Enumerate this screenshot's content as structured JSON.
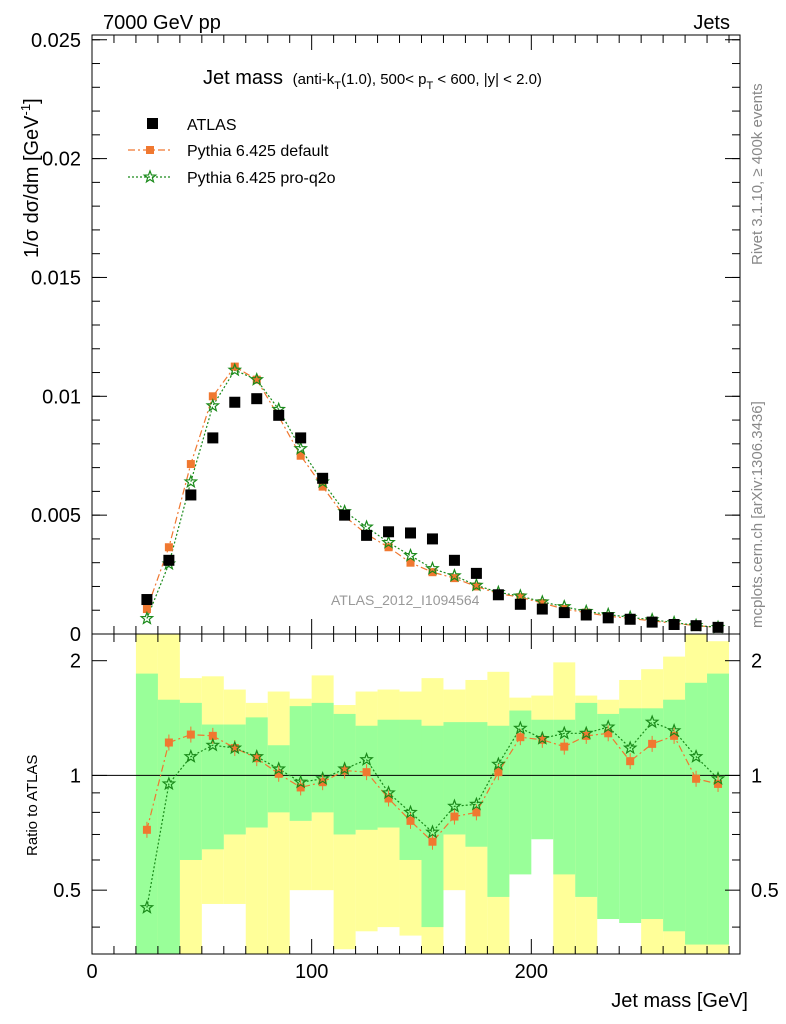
{
  "header": {
    "left": "7000 GeV pp",
    "right": "Jets"
  },
  "side_labels": {
    "top": "Rivet 3.1.10, ≥ 400k events",
    "bottom": "mcplots.cern.ch [arXiv:1306.3436]"
  },
  "watermark": "ATLAS_2012_I1094564",
  "colors": {
    "atlas": "#000000",
    "default": "#f07830",
    "proq2o": "#1a8a1a",
    "band_inner": "#99ff99",
    "band_outer": "#ffff99"
  },
  "chart_data": [
    {
      "type": "scatter",
      "title_main": "Jet mass",
      "title_sub": "(anti-k",
      "title_sub_T": "T",
      "title_sub_rest": "(1.0), 500< p",
      "title_sub_T2": "T",
      "title_sub_end": " < 600, |y| < 2.0)",
      "ylabel": "1/σ dσ/dm [GeV",
      "ylabel_sup": "-1",
      "ylabel_end": "]",
      "xlim": [
        0,
        295
      ],
      "ylim": [
        0,
        0.0252
      ],
      "yticks": [
        0,
        0.005,
        0.01,
        0.015,
        0.02,
        0.025
      ],
      "ytick_labels": [
        "0",
        "0.005",
        "0.01",
        "0.015",
        "0.02",
        "0.025"
      ],
      "legend_position": "top-left",
      "x": [
        25,
        35,
        45,
        55,
        65,
        75,
        85,
        95,
        105,
        115,
        125,
        135,
        145,
        155,
        165,
        175,
        185,
        195,
        205,
        215,
        225,
        235,
        245,
        255,
        265,
        275,
        285
      ],
      "series": [
        {
          "name": "ATLAS",
          "key": "atlas",
          "values": [
            0.00145,
            0.0031,
            0.00585,
            0.00825,
            0.00975,
            0.0099,
            0.0092,
            0.00825,
            0.00655,
            0.005,
            0.00415,
            0.0043,
            0.00425,
            0.004,
            0.0031,
            0.00255,
            0.00165,
            0.00125,
            0.00105,
            0.0009,
            0.0008,
            0.00068,
            0.00062,
            0.0005,
            0.0004,
            0.00035,
            0.00028
          ]
        },
        {
          "name": "Pythia 6.425 default",
          "key": "default",
          "values": [
            0.00105,
            0.00365,
            0.00715,
            0.01,
            0.01125,
            0.0107,
            0.00915,
            0.0075,
            0.0062,
            0.00495,
            0.0042,
            0.00365,
            0.003,
            0.0026,
            0.00235,
            0.002,
            0.0017,
            0.00155,
            0.0013,
            0.00105,
            0.0009,
            0.00075,
            0.00065,
            0.00055,
            0.00045,
            0.00035,
            0.00028
          ]
        },
        {
          "name": "Pythia 6.425 pro-q2o",
          "key": "proq2o",
          "values": [
            0.00065,
            0.00295,
            0.0064,
            0.0096,
            0.0111,
            0.0107,
            0.00945,
            0.0078,
            0.0064,
            0.00515,
            0.0045,
            0.00385,
            0.0033,
            0.00275,
            0.00245,
            0.00205,
            0.00175,
            0.0016,
            0.00135,
            0.00115,
            0.00095,
            0.00082,
            0.0007,
            0.0006,
            0.00048,
            0.00036,
            0.00028
          ]
        }
      ]
    },
    {
      "type": "scatter",
      "ylabel": "Ratio to ATLAS",
      "xlabel": "Jet mass [GeV]",
      "scale": "log",
      "xlim": [
        0,
        295
      ],
      "ylim": [
        0.34,
        2.35
      ],
      "xticks": [
        0,
        100,
        200
      ],
      "xtick_labels": [
        "0",
        "100",
        "200"
      ],
      "yticks": [
        0.5,
        1,
        2
      ],
      "ytick_labels": [
        "0.5",
        "1",
        "2"
      ],
      "bin_edges": [
        20,
        30,
        40,
        50,
        60,
        70,
        80,
        90,
        100,
        110,
        120,
        130,
        140,
        150,
        160,
        170,
        180,
        190,
        200,
        210,
        220,
        230,
        240,
        250,
        260,
        270,
        280,
        290
      ],
      "band_inner": [
        [
          0.34,
          1.85
        ],
        [
          0.34,
          1.58
        ],
        [
          0.6,
          1.55
        ],
        [
          0.64,
          1.36
        ],
        [
          0.7,
          1.36
        ],
        [
          0.73,
          1.42
        ],
        [
          0.8,
          1.2
        ],
        [
          0.76,
          1.52
        ],
        [
          0.8,
          1.55
        ],
        [
          0.7,
          1.45
        ],
        [
          0.72,
          1.35
        ],
        [
          0.73,
          1.4
        ],
        [
          0.6,
          1.4
        ],
        [
          0.4,
          1.35
        ],
        [
          0.7,
          1.38
        ],
        [
          0.65,
          1.38
        ],
        [
          0.48,
          1.35
        ],
        [
          0.55,
          1.48
        ],
        [
          0.68,
          1.4
        ],
        [
          0.55,
          1.4
        ],
        [
          0.48,
          1.55
        ],
        [
          0.42,
          1.45
        ],
        [
          0.41,
          1.5
        ],
        [
          0.42,
          1.5
        ],
        [
          0.39,
          1.58
        ],
        [
          0.36,
          1.75
        ],
        [
          0.36,
          1.85
        ]
      ],
      "band_outer": [
        [
          0.34,
          2.35
        ],
        [
          0.34,
          2.35
        ],
        [
          0.34,
          1.8
        ],
        [
          0.46,
          1.82
        ],
        [
          0.46,
          1.68
        ],
        [
          0.34,
          1.55
        ],
        [
          0.34,
          1.66
        ],
        [
          0.5,
          1.59
        ],
        [
          0.5,
          1.83
        ],
        [
          0.35,
          1.53
        ],
        [
          0.39,
          1.66
        ],
        [
          0.4,
          1.68
        ],
        [
          0.38,
          1.66
        ],
        [
          0.34,
          1.8
        ],
        [
          0.5,
          1.68
        ],
        [
          0.34,
          1.78
        ],
        [
          0.34,
          1.87
        ],
        [
          0.7,
          1.6
        ],
        [
          0.72,
          1.62
        ],
        [
          0.34,
          1.98
        ],
        [
          0.34,
          1.62
        ],
        [
          0.59,
          1.58
        ],
        [
          0.6,
          1.78
        ],
        [
          0.34,
          1.9
        ],
        [
          0.34,
          2.05
        ],
        [
          0.34,
          2.35
        ],
        [
          0.34,
          2.25
        ]
      ],
      "series": [
        {
          "name": "Pythia 6.425 default",
          "key": "default",
          "values": [
            0.72,
            1.22,
            1.28,
            1.27,
            1.18,
            1.11,
            1.01,
            0.93,
            0.96,
            1.03,
            1.02,
            0.87,
            0.76,
            0.67,
            0.78,
            0.8,
            1.02,
            1.26,
            1.24,
            1.19,
            1.27,
            1.29,
            1.09,
            1.21,
            1.27,
            0.98,
            0.95
          ]
        },
        {
          "name": "Pythia 6.425 pro-q2o",
          "key": "proq2o",
          "values": [
            0.45,
            0.95,
            1.12,
            1.2,
            1.18,
            1.12,
            1.04,
            0.96,
            0.98,
            1.04,
            1.1,
            0.9,
            0.8,
            0.71,
            0.83,
            0.84,
            1.07,
            1.33,
            1.25,
            1.29,
            1.29,
            1.34,
            1.18,
            1.38,
            1.31,
            1.12,
            0.98
          ]
        }
      ]
    }
  ]
}
